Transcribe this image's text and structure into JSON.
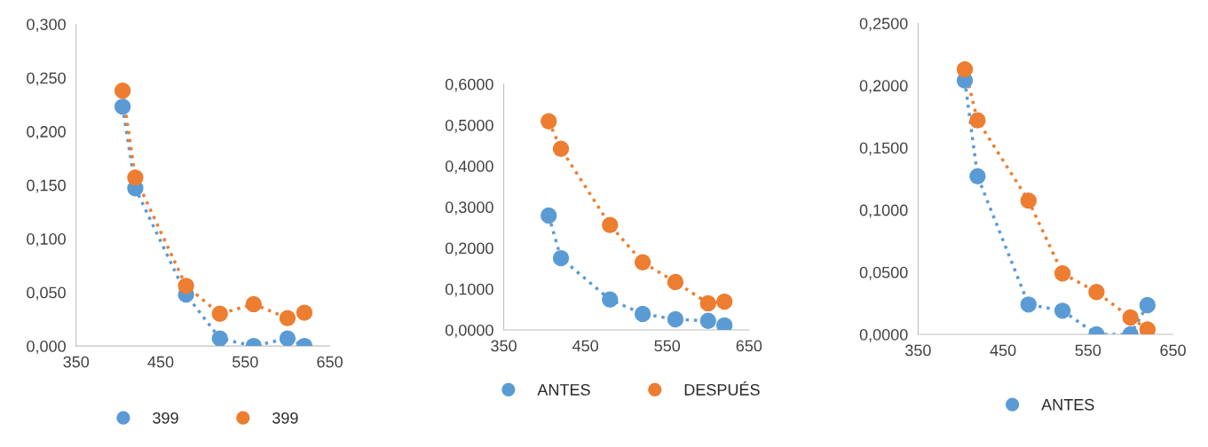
{
  "chart_data": [
    {
      "type": "line",
      "x": [
        405,
        420,
        480,
        520,
        560,
        600,
        620
      ],
      "marker": "circle",
      "line_style": "dotted",
      "legend": "bottom",
      "grid": false,
      "series": [
        {
          "name": "399",
          "color": "#5b9bd5",
          "values": [
            0.223,
            0.147,
            0.048,
            0.007,
            0.0,
            0.007,
            0.0
          ]
        },
        {
          "name": "399",
          "color": "#ed7d31",
          "values": [
            0.238,
            0.157,
            0.056,
            0.03,
            0.039,
            0.026,
            0.031
          ]
        }
      ],
      "xlim": [
        350,
        650
      ],
      "xticks": [
        350,
        450,
        550,
        650
      ],
      "ylim": [
        0,
        0.3
      ],
      "yticks": [
        {
          "value": 0,
          "label": "0,000"
        },
        {
          "value": 0.05,
          "label": "0,050"
        },
        {
          "value": 0.1,
          "label": "0,100"
        },
        {
          "value": 0.15,
          "label": "0,150"
        },
        {
          "value": 0.2,
          "label": "0,200"
        },
        {
          "value": 0.25,
          "label": "0,250"
        },
        {
          "value": 0.3,
          "label": "0,300"
        }
      ]
    },
    {
      "type": "line",
      "x": [
        405,
        420,
        480,
        520,
        560,
        600,
        620
      ],
      "marker": "circle",
      "line_style": "dotted",
      "legend": "bottom",
      "grid": false,
      "series": [
        {
          "name": "ANTES",
          "color": "#5b9bd5",
          "values": [
            0.279,
            0.175,
            0.074,
            0.039,
            0.026,
            0.022,
            0.011
          ]
        },
        {
          "name": "DESPUÉS",
          "color": "#ed7d31",
          "values": [
            0.509,
            0.442,
            0.256,
            0.165,
            0.117,
            0.065,
            0.069
          ]
        }
      ],
      "xlim": [
        350,
        650
      ],
      "xticks": [
        350,
        450,
        550,
        650
      ],
      "ylim": [
        0,
        0.6
      ],
      "yticks": [
        {
          "value": 0,
          "label": "0,0000"
        },
        {
          "value": 0.1,
          "label": "0,1000"
        },
        {
          "value": 0.2,
          "label": "0,2000"
        },
        {
          "value": 0.3,
          "label": "0,3000"
        },
        {
          "value": 0.4,
          "label": "0,4000"
        },
        {
          "value": 0.5,
          "label": "0,5000"
        },
        {
          "value": 0.6,
          "label": "0,6000"
        }
      ]
    },
    {
      "type": "line",
      "x": [
        405,
        420,
        480,
        520,
        560,
        600,
        620
      ],
      "marker": "circle",
      "line_style": "dotted",
      "legend": "bottom",
      "grid": false,
      "series": [
        {
          "name": "ANTES",
          "color": "#5b9bd5",
          "values": [
            0.204,
            0.127,
            0.024,
            0.019,
            0.0,
            0.0,
            0.0235
          ]
        },
        {
          "color": "#ed7d31",
          "values": [
            0.213,
            0.172,
            0.1075,
            0.049,
            0.034,
            0.0135,
            0.004
          ]
        }
      ],
      "xlim": [
        350,
        650
      ],
      "xticks": [
        350,
        450,
        550,
        650
      ],
      "ylim": [
        0,
        0.25
      ],
      "yticks": [
        {
          "value": 0,
          "label": "0,0000"
        },
        {
          "value": 0.05,
          "label": "0,0500"
        },
        {
          "value": 0.1,
          "label": "0,1000"
        },
        {
          "value": 0.15,
          "label": "0,1500"
        },
        {
          "value": 0.2,
          "label": "0,2000"
        },
        {
          "value": 0.25,
          "label": "0,2500"
        }
      ]
    }
  ]
}
